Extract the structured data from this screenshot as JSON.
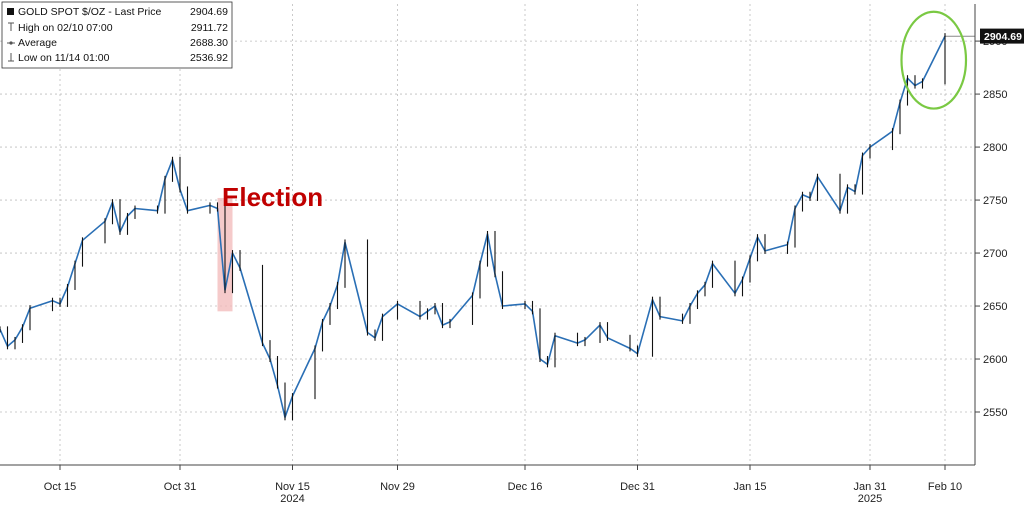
{
  "legend": {
    "title": "GOLD SPOT $/OZ - Last Price",
    "last_value": "2904.69",
    "high_label": "High on 02/10 07:00",
    "high_value": "2911.72",
    "average_label": "Average",
    "average_value": "2688.30",
    "low_label": "Low on 11/14 01:00",
    "low_value": "2536.92"
  },
  "annotation": {
    "election_label": "Election",
    "last_price_tag": "2904.69"
  },
  "colors": {
    "line": "#2a6fb5",
    "candle": "#111111",
    "highlight": "#f2b8b8",
    "circle": "#7ac943",
    "election": "#c00000",
    "last_tag_bg": "#111111",
    "grid": "#bdbdbd"
  },
  "chart_data": {
    "type": "line",
    "series": [
      {
        "name": "GOLD SPOT $/OZ",
        "points": [
          [
            "2024-10-07",
            2628
          ],
          [
            "2024-10-08",
            2612
          ],
          [
            "2024-10-09",
            2618
          ],
          [
            "2024-10-10",
            2630
          ],
          [
            "2024-10-11",
            2648
          ],
          [
            "2024-10-14",
            2655
          ],
          [
            "2024-10-15",
            2652
          ],
          [
            "2024-10-16",
            2668
          ],
          [
            "2024-10-17",
            2690
          ],
          [
            "2024-10-18",
            2712
          ],
          [
            "2024-10-21",
            2730
          ],
          [
            "2024-10-22",
            2748
          ],
          [
            "2024-10-23",
            2720
          ],
          [
            "2024-10-24",
            2735
          ],
          [
            "2024-10-25",
            2742
          ],
          [
            "2024-10-28",
            2740
          ],
          [
            "2024-10-29",
            2770
          ],
          [
            "2024-10-30",
            2788
          ],
          [
            "2024-10-31",
            2760
          ],
          [
            "2024-11-01",
            2740
          ],
          [
            "2024-11-04",
            2745
          ],
          [
            "2024-11-05",
            2742
          ],
          [
            "2024-11-06",
            2665
          ],
          [
            "2024-11-07",
            2700
          ],
          [
            "2024-11-08",
            2686
          ],
          [
            "2024-11-11",
            2615
          ],
          [
            "2024-11-12",
            2600
          ],
          [
            "2024-11-13",
            2575
          ],
          [
            "2024-11-14",
            2545
          ],
          [
            "2024-11-15",
            2565
          ],
          [
            "2024-11-18",
            2610
          ],
          [
            "2024-11-19",
            2635
          ],
          [
            "2024-11-20",
            2650
          ],
          [
            "2024-11-21",
            2670
          ],
          [
            "2024-11-22",
            2710
          ],
          [
            "2024-11-25",
            2625
          ],
          [
            "2024-11-26",
            2620
          ],
          [
            "2024-11-27",
            2640
          ],
          [
            "2024-11-29",
            2652
          ],
          [
            "2024-12-02",
            2640
          ],
          [
            "2024-12-03",
            2645
          ],
          [
            "2024-12-04",
            2650
          ],
          [
            "2024-12-05",
            2632
          ],
          [
            "2024-12-06",
            2635
          ],
          [
            "2024-12-09",
            2660
          ],
          [
            "2024-12-10",
            2690
          ],
          [
            "2024-12-11",
            2718
          ],
          [
            "2024-12-12",
            2680
          ],
          [
            "2024-12-13",
            2650
          ],
          [
            "2024-12-16",
            2652
          ],
          [
            "2024-12-17",
            2645
          ],
          [
            "2024-12-18",
            2600
          ],
          [
            "2024-12-19",
            2595
          ],
          [
            "2024-12-20",
            2622
          ],
          [
            "2024-12-23",
            2615
          ],
          [
            "2024-12-24",
            2618
          ],
          [
            "2024-12-26",
            2632
          ],
          [
            "2024-12-27",
            2620
          ],
          [
            "2024-12-30",
            2610
          ],
          [
            "2024-12-31",
            2605
          ],
          [
            "2025-01-02",
            2656
          ],
          [
            "2025-01-03",
            2640
          ],
          [
            "2025-01-06",
            2636
          ],
          [
            "2025-01-07",
            2650
          ],
          [
            "2025-01-08",
            2662
          ],
          [
            "2025-01-09",
            2670
          ],
          [
            "2025-01-10",
            2690
          ],
          [
            "2025-01-13",
            2662
          ],
          [
            "2025-01-14",
            2675
          ],
          [
            "2025-01-15",
            2695
          ],
          [
            "2025-01-16",
            2715
          ],
          [
            "2025-01-17",
            2702
          ],
          [
            "2025-01-20",
            2708
          ],
          [
            "2025-01-21",
            2742
          ],
          [
            "2025-01-22",
            2755
          ],
          [
            "2025-01-23",
            2752
          ],
          [
            "2025-01-24",
            2772
          ],
          [
            "2025-01-27",
            2740
          ],
          [
            "2025-01-28",
            2762
          ],
          [
            "2025-01-29",
            2758
          ],
          [
            "2025-01-30",
            2792
          ],
          [
            "2025-01-31",
            2800
          ],
          [
            "2025-02-03",
            2815
          ],
          [
            "2025-02-04",
            2842
          ],
          [
            "2025-02-05",
            2865
          ],
          [
            "2025-02-06",
            2858
          ],
          [
            "2025-02-07",
            2862
          ],
          [
            "2025-02-10",
            2904.69
          ]
        ]
      }
    ],
    "x_ticks": [
      {
        "date": "2024-10-15",
        "label": "Oct 15"
      },
      {
        "date": "2024-10-31",
        "label": "Oct 31"
      },
      {
        "date": "2024-11-15",
        "label": "Nov 15"
      },
      {
        "date": "2024-11-29",
        "label": "Nov 29"
      },
      {
        "date": "2024-12-16",
        "label": "Dec 16"
      },
      {
        "date": "2024-12-31",
        "label": "Dec 31"
      },
      {
        "date": "2025-01-15",
        "label": "Jan 15"
      },
      {
        "date": "2025-01-31",
        "label": "Jan 31"
      },
      {
        "date": "2025-02-10",
        "label": "Feb 10"
      }
    ],
    "year_labels": [
      {
        "date": "2024-11-15",
        "label": "2024"
      },
      {
        "date": "2025-01-31",
        "label": "2025"
      }
    ],
    "y_ticks": [
      2550,
      2600,
      2650,
      2700,
      2750,
      2800,
      2850,
      2900
    ],
    "xlim": [
      "2024-10-07",
      "2025-02-14"
    ],
    "ylim": [
      2500,
      2935
    ],
    "grid": true,
    "y_axis_side": "right",
    "legend_position": "top-left",
    "election_band": [
      "2024-11-05",
      "2024-11-07"
    ],
    "election_band_range": [
      2645,
      2752
    ],
    "circle_highlight": {
      "x_range": [
        "2025-02-05",
        "2025-02-12"
      ],
      "y_range": [
        2842,
        2922
      ]
    }
  }
}
